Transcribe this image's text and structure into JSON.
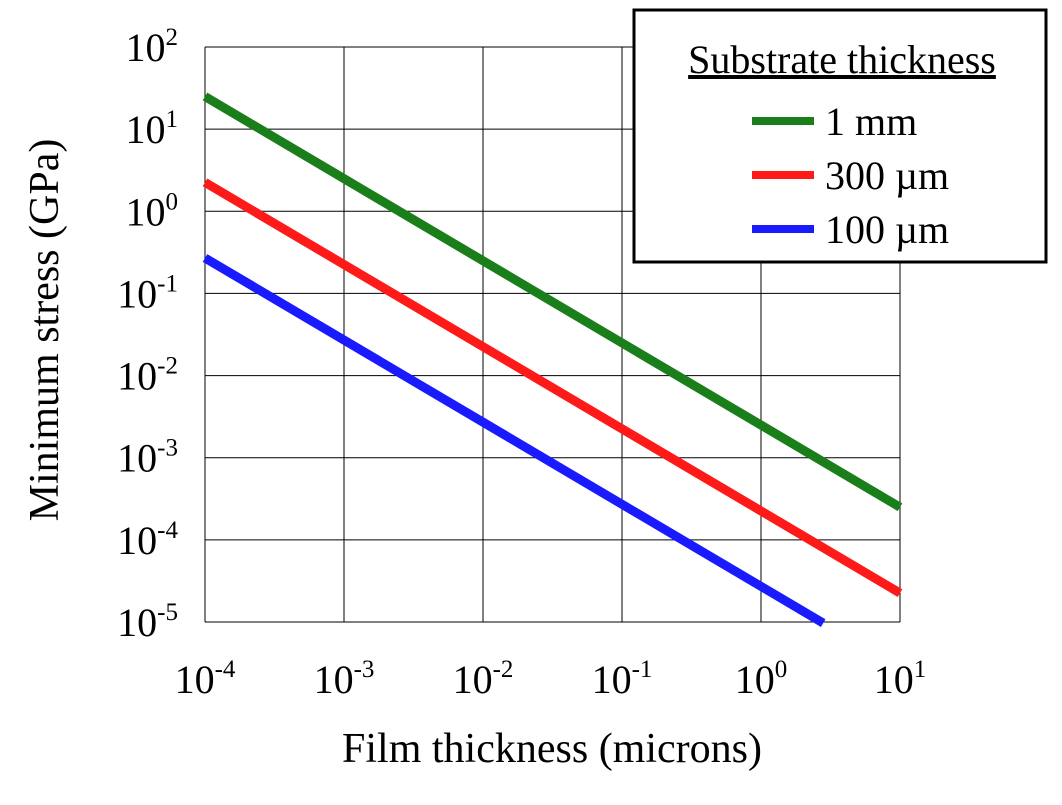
{
  "chart_data": {
    "type": "line",
    "x_scale": "log",
    "y_scale": "log",
    "xlabel": "Film thickness (microns)",
    "ylabel": "Minimum stress (GPa)",
    "xlim": [
      0.0001,
      10
    ],
    "ylim": [
      1e-05,
      100
    ],
    "grid": true,
    "legend": {
      "title": "Substrate thickness",
      "placement": "top-right"
    },
    "x_ticks": [
      {
        "base": "10",
        "exp": "-4",
        "value": 0.0001
      },
      {
        "base": "10",
        "exp": "-3",
        "value": 0.001
      },
      {
        "base": "10",
        "exp": "-2",
        "value": 0.01
      },
      {
        "base": "10",
        "exp": "-1",
        "value": 0.1
      },
      {
        "base": "10",
        "exp": "0",
        "value": 1
      },
      {
        "base": "10",
        "exp": "1",
        "value": 10
      }
    ],
    "y_ticks": [
      {
        "base": "10",
        "exp": "2",
        "value": 100
      },
      {
        "base": "10",
        "exp": "1",
        "value": 10
      },
      {
        "base": "10",
        "exp": "0",
        "value": 1
      },
      {
        "base": "10",
        "exp": "-1",
        "value": 0.1
      },
      {
        "base": "10",
        "exp": "-2",
        "value": 0.01
      },
      {
        "base": "10",
        "exp": "-3",
        "value": 0.001
      },
      {
        "base": "10",
        "exp": "-4",
        "value": 0.0001
      },
      {
        "base": "10",
        "exp": "-5",
        "value": 1e-05
      }
    ],
    "series": [
      {
        "name": "1 mm",
        "color": "#1a7f1a",
        "x": [
          0.0001,
          10
        ],
        "y": [
          25,
          0.00025
        ]
      },
      {
        "name": "300 µm",
        "color": "#ff1a1a",
        "x": [
          0.0001,
          10
        ],
        "y": [
          2.25,
          2.25e-05
        ]
      },
      {
        "name": "100 µm",
        "color": "#1a1aff",
        "x": [
          0.0001,
          2.8
        ],
        "y": [
          0.27,
          9.7e-06
        ]
      }
    ]
  }
}
